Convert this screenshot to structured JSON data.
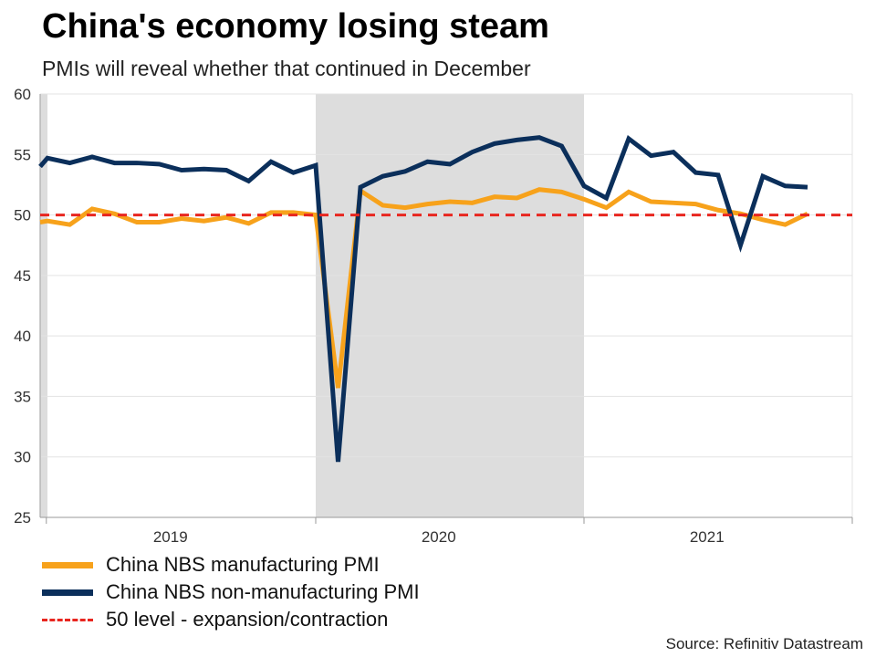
{
  "header": {
    "title": "China's economy losing steam",
    "subtitle": "PMIs will reveal whether that continued in December"
  },
  "footer": {
    "source": "Source: Refinitiv Datastream"
  },
  "colors": {
    "manufacturing": "#F7A21B",
    "non_manufacturing": "#0B2F5B",
    "reference": "#E8261F",
    "shade": "#DDDDDD",
    "grid": "#E3E3E3"
  },
  "chart_data": {
    "type": "line",
    "title": "China's economy losing steam",
    "subtitle": "PMIs will reveal whether that continued in December",
    "xlabel": "",
    "ylabel": "",
    "ylim": [
      25,
      60
    ],
    "yticks": [
      25,
      30,
      35,
      40,
      45,
      50,
      55,
      60
    ],
    "x": [
      "2019-01",
      "2019-02",
      "2019-03",
      "2019-04",
      "2019-05",
      "2019-06",
      "2019-07",
      "2019-08",
      "2019-09",
      "2019-10",
      "2019-11",
      "2019-12",
      "2020-01",
      "2020-02",
      "2020-03",
      "2020-04",
      "2020-05",
      "2020-06",
      "2020-07",
      "2020-08",
      "2020-09",
      "2020-10",
      "2020-11",
      "2020-12",
      "2021-01",
      "2021-02",
      "2021-03",
      "2021-04",
      "2021-05",
      "2021-06",
      "2021-07",
      "2021-08",
      "2021-09",
      "2021-10",
      "2021-11"
    ],
    "year_labels": [
      {
        "label": "2019",
        "center_month": 5.5
      },
      {
        "label": "2020",
        "center_month": 17.5
      },
      {
        "label": "2021",
        "center_month": 29.5
      }
    ],
    "shaded_ranges": [
      {
        "from_month": -0.3,
        "to_month": 0
      },
      {
        "from_month": 12,
        "to_month": 24
      }
    ],
    "series": [
      {
        "name": "China NBS manufacturing PMI",
        "values": [
          49.5,
          49.2,
          50.5,
          50.1,
          49.4,
          49.4,
          49.7,
          49.5,
          49.8,
          49.3,
          50.2,
          50.2,
          50.0,
          35.7,
          52.0,
          50.8,
          50.6,
          50.9,
          51.1,
          51.0,
          51.5,
          51.4,
          52.1,
          51.9,
          51.3,
          50.6,
          51.9,
          51.1,
          51.0,
          50.9,
          50.4,
          50.1,
          49.6,
          49.2,
          50.1
        ]
      },
      {
        "name": "China NBS non-manufacturing PMI",
        "values": [
          54.7,
          54.3,
          54.8,
          54.3,
          54.3,
          54.2,
          53.7,
          53.8,
          53.7,
          52.8,
          54.4,
          53.5,
          54.1,
          29.6,
          52.3,
          53.2,
          53.6,
          54.4,
          54.2,
          55.2,
          55.9,
          56.2,
          56.4,
          55.7,
          52.4,
          51.4,
          56.3,
          54.9,
          55.2,
          53.5,
          53.3,
          47.5,
          53.2,
          52.4,
          52.3
        ]
      },
      {
        "name": "50 level - expansion/contraction",
        "constant": 50
      }
    ],
    "start_value_non_manufacturing": 54.0,
    "start_value_manufacturing": 49.4,
    "legend_position": "bottom-left",
    "grid": true
  }
}
